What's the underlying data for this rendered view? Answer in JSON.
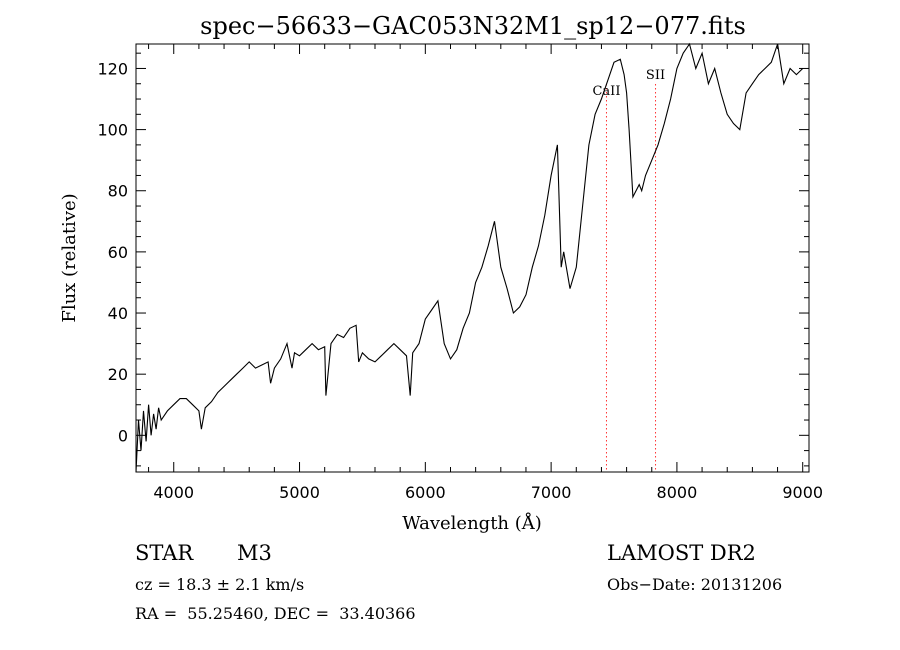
{
  "chart_data": {
    "type": "line",
    "title": "spec−56633−GAC053N32M1_sp12−077.fits",
    "xlabel": "Wavelength (Å)",
    "ylabel": "Flux (relative)",
    "xlim": [
      3700,
      9050
    ],
    "ylim": [
      -12,
      128
    ],
    "xticks": [
      4000,
      5000,
      6000,
      7000,
      8000,
      9000
    ],
    "yticks": [
      0,
      20,
      40,
      60,
      80,
      100,
      120
    ],
    "grid": false,
    "line_color": "#000000",
    "marker_color": "#ff3333",
    "lines": [
      {
        "label": "CaII",
        "x": 7440
      },
      {
        "label": "SII",
        "x": 7830
      }
    ],
    "series": [
      {
        "x": [
          3700,
          3720,
          3740,
          3760,
          3780,
          3800,
          3820,
          3840,
          3860,
          3880,
          3900,
          3950,
          4000,
          4050,
          4100,
          4150,
          4200,
          4220,
          4250,
          4300,
          4350,
          4400,
          4450,
          4500,
          4550,
          4600,
          4650,
          4700,
          4750,
          4770,
          4800,
          4850,
          4900,
          4940,
          4960,
          5000,
          5050,
          5100,
          5150,
          5200,
          5210,
          5250,
          5300,
          5350,
          5400,
          5450,
          5470,
          5500,
          5550,
          5600,
          5650,
          5700,
          5750,
          5800,
          5850,
          5880,
          5900,
          5950,
          6000,
          6050,
          6100,
          6150,
          6200,
          6250,
          6300,
          6350,
          6400,
          6450,
          6500,
          6550,
          6600,
          6650,
          6700,
          6750,
          6800,
          6850,
          6900,
          6950,
          7000,
          7050,
          7080,
          7100,
          7150,
          7200,
          7250,
          7300,
          7350,
          7400,
          7450,
          7500,
          7550,
          7580,
          7600,
          7620,
          7650,
          7700,
          7720,
          7750,
          7800,
          7850,
          7900,
          7950,
          8000,
          8050,
          8100,
          8150,
          8200,
          8250,
          8300,
          8350,
          8400,
          8450,
          8500,
          8550,
          8600,
          8650,
          8700,
          8750,
          8800,
          8850,
          8900,
          8950,
          9000
        ],
        "values": [
          -12,
          5,
          -5,
          8,
          -2,
          10,
          0,
          7,
          2,
          9,
          5,
          8,
          10,
          12,
          12,
          10,
          8,
          2,
          9,
          11,
          14,
          16,
          18,
          20,
          22,
          24,
          22,
          23,
          24,
          17,
          22,
          25,
          30,
          22,
          27,
          26,
          28,
          30,
          28,
          29,
          13,
          30,
          33,
          32,
          35,
          36,
          24,
          27,
          25,
          24,
          26,
          28,
          30,
          28,
          26,
          13,
          27,
          30,
          38,
          41,
          44,
          30,
          25,
          28,
          35,
          40,
          50,
          55,
          62,
          70,
          55,
          48,
          40,
          42,
          46,
          55,
          62,
          72,
          85,
          95,
          55,
          60,
          48,
          55,
          75,
          95,
          105,
          110,
          116,
          122,
          123,
          118,
          112,
          100,
          78,
          82,
          80,
          85,
          90,
          95,
          102,
          110,
          120,
          125,
          128,
          120,
          125,
          115,
          120,
          112,
          105,
          102,
          100,
          112,
          115,
          118,
          120,
          122,
          128,
          115,
          120,
          118,
          120
        ]
      }
    ]
  },
  "info": {
    "object_type": "STAR",
    "subclass": "M3",
    "survey": "LAMOST DR2",
    "redshift": "cz = 18.3 ± 2.1 km/s",
    "obs_date": "Obs−Date: 20131206",
    "coords": "RA =  55.25460, DEC =  33.40366"
  }
}
